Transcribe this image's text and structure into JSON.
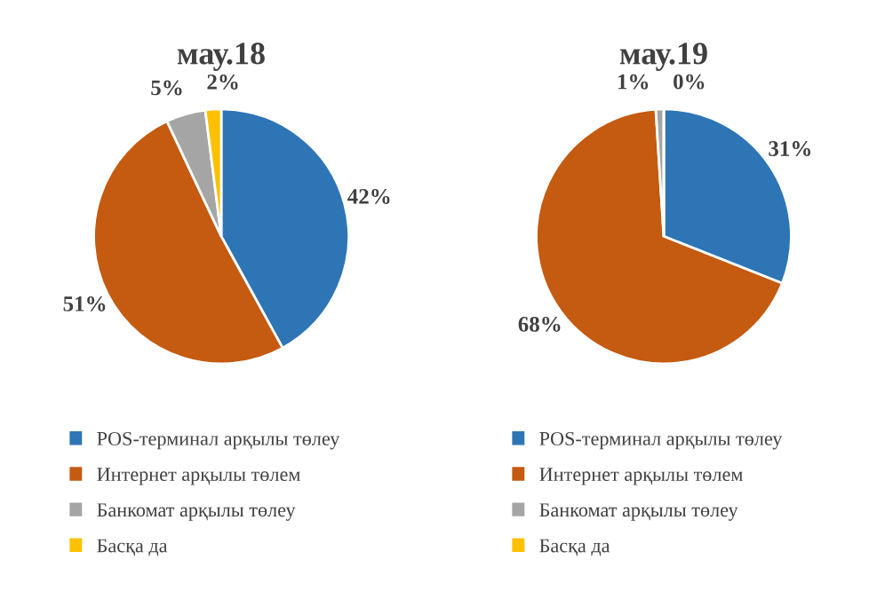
{
  "chart_data": [
    {
      "type": "pie",
      "title": "мау.18",
      "categories": [
        "POS-терминал арқылы төлеу",
        "Интернет арқылы төлем",
        "Банкомат арқылы төлеу",
        "Басқа да"
      ],
      "values": [
        42,
        51,
        5,
        2
      ],
      "value_labels": [
        "42%",
        "51%",
        "5%",
        "2%"
      ],
      "colors": [
        "#2e75b6",
        "#c55a11",
        "#a5a5a5",
        "#ffc000"
      ],
      "legend": "bottom"
    },
    {
      "type": "pie",
      "title": "мау.19",
      "categories": [
        "POS-терминал арқылы төлеу",
        "Интернет арқылы төлем",
        "Банкомат арқылы төлеу",
        "Басқа да"
      ],
      "values": [
        31,
        68,
        1,
        0
      ],
      "value_labels": [
        "31%",
        "68%",
        "1%",
        "0%"
      ],
      "colors": [
        "#2e75b6",
        "#c55a11",
        "#a5a5a5",
        "#ffc000"
      ],
      "legend": "bottom"
    }
  ]
}
